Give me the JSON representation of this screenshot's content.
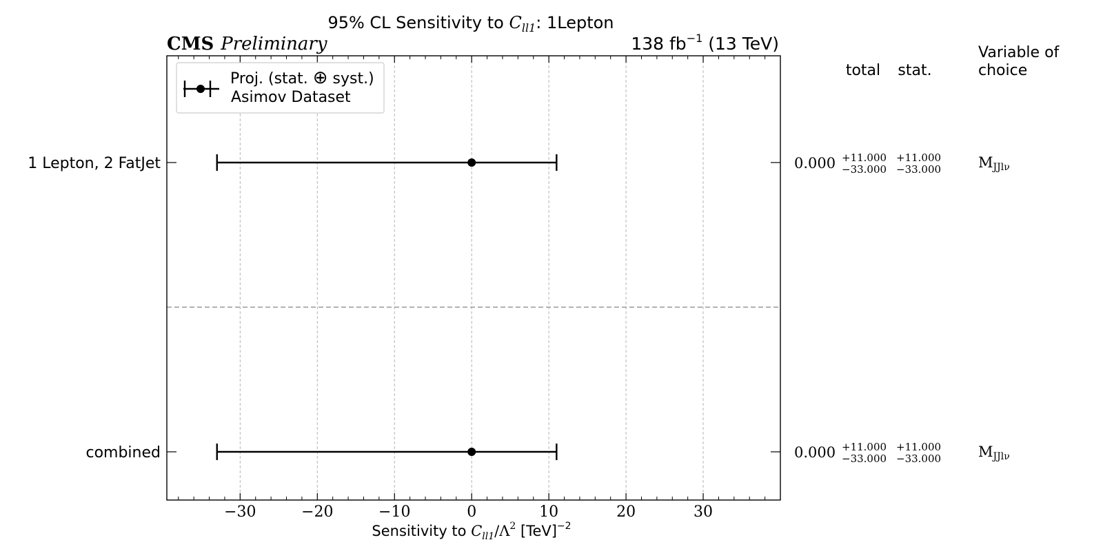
{
  "header": {
    "title_prefix": "95% CL Sensitivity to ",
    "title_param": "C",
    "title_param_sub": "ll1",
    "title_suffix": ": 1Lepton",
    "experiment": "CMS",
    "status": "Preliminary",
    "lumi_value": "138 fb",
    "lumi_exp": "−1",
    "energy": " (13 TeV)"
  },
  "legend": {
    "line1_a": "Proj. (stat. ",
    "line1_symbol": "⊕",
    "line1_b": " syst.)",
    "line2": "Asimov Dataset"
  },
  "columns": {
    "total": "total",
    "stat": "stat.",
    "variable_line1": "Variable of",
    "variable_line2": "choice"
  },
  "xaxis": {
    "label_prefix": "Sensitivity to ",
    "label_param": "C",
    "label_param_sub": "ll1",
    "label_mid": "/Λ",
    "label_sq": "2",
    "label_unit": " [TeV]",
    "label_unit_exp": "−2"
  },
  "chart_data": {
    "type": "scatter",
    "xlim": [
      -39.5,
      40
    ],
    "xticks": [
      -30,
      -20,
      -10,
      0,
      10,
      20,
      30
    ],
    "xtick_labels": [
      "−30",
      "−20",
      "−10",
      "0",
      "10",
      "20",
      "30"
    ],
    "grid": true,
    "legend_position": "top-left",
    "rows": [
      {
        "label": "1 Lepton, 2 FatJet",
        "central": 0,
        "low": -33,
        "high": 11,
        "value_text": "0.000",
        "total_up": "+11.000",
        "total_down": "−33.000",
        "stat_up": "+11.000",
        "stat_down": "−33.000",
        "variable_main": "M",
        "variable_sub": "JJlν"
      },
      {
        "label": "combined",
        "central": 0,
        "low": -33,
        "high": 11,
        "value_text": "0.000",
        "total_up": "+11.000",
        "total_down": "−33.000",
        "stat_up": "+11.000",
        "stat_down": "−33.000",
        "variable_main": "M",
        "variable_sub": "JJlν"
      }
    ]
  }
}
